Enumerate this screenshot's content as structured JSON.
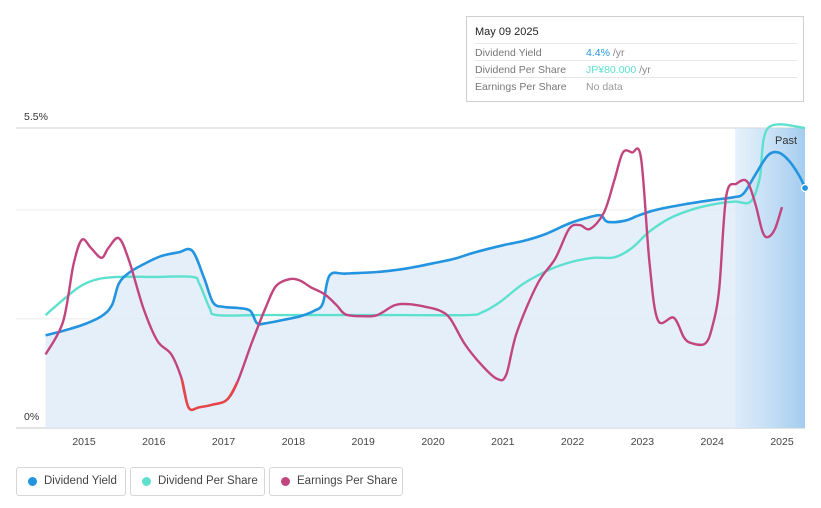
{
  "tooltip": {
    "date": "May 09 2025",
    "rows": [
      {
        "label": "Dividend Yield",
        "value": "4.4%",
        "unit": " /yr"
      },
      {
        "label": "Dividend Per Share",
        "value": "JP¥80.000",
        "unit": " /yr"
      },
      {
        "label": "Earnings Per Share",
        "value": "No data",
        "unit": ""
      }
    ]
  },
  "legend": [
    {
      "label": "Dividend Yield",
      "color": "#2394df"
    },
    {
      "label": "Dividend Per Share",
      "color": "#5ee0cf"
    },
    {
      "label": "Earnings Per Share",
      "color": "#c2457f"
    }
  ],
  "colors": {
    "dividend_yield": "#2394df",
    "dividend_per_share": "#5ee0cf",
    "earnings_positive": "#c2457f",
    "earnings_negative": "#e84545",
    "area_fill": "#dbeaf8"
  },
  "past_label": "Past",
  "chart_data": {
    "type": "line",
    "y_axis": {
      "min": 0,
      "max": 5.5,
      "tick_labels": [
        "0%",
        "5.5%"
      ]
    },
    "x_axis": {
      "tick_labels": [
        "2015",
        "2016",
        "2017",
        "2018",
        "2019",
        "2020",
        "2021",
        "2022",
        "2023",
        "2024",
        "2025"
      ]
    },
    "past_region_start": 2024.33,
    "series": [
      {
        "name": "Dividend Yield",
        "unit": "%",
        "points": [
          [
            2014.45,
            1.7
          ],
          [
            2014.7,
            1.78
          ],
          [
            2015.0,
            1.9
          ],
          [
            2015.25,
            2.05
          ],
          [
            2015.4,
            2.25
          ],
          [
            2015.5,
            2.65
          ],
          [
            2015.65,
            2.85
          ],
          [
            2015.85,
            3.0
          ],
          [
            2016.1,
            3.15
          ],
          [
            2016.35,
            3.22
          ],
          [
            2016.55,
            3.25
          ],
          [
            2016.72,
            2.75
          ],
          [
            2016.85,
            2.3
          ],
          [
            2017.0,
            2.22
          ],
          [
            2017.2,
            2.2
          ],
          [
            2017.38,
            2.15
          ],
          [
            2017.48,
            1.92
          ],
          [
            2017.6,
            1.92
          ],
          [
            2017.85,
            1.98
          ],
          [
            2018.1,
            2.05
          ],
          [
            2018.3,
            2.15
          ],
          [
            2018.42,
            2.28
          ],
          [
            2018.52,
            2.8
          ],
          [
            2018.75,
            2.83
          ],
          [
            2019.2,
            2.86
          ],
          [
            2019.6,
            2.92
          ],
          [
            2020.0,
            3.02
          ],
          [
            2020.3,
            3.1
          ],
          [
            2020.6,
            3.22
          ],
          [
            2021.0,
            3.35
          ],
          [
            2021.3,
            3.43
          ],
          [
            2021.6,
            3.55
          ],
          [
            2021.95,
            3.75
          ],
          [
            2022.2,
            3.85
          ],
          [
            2022.4,
            3.9
          ],
          [
            2022.5,
            3.78
          ],
          [
            2022.75,
            3.8
          ],
          [
            2022.95,
            3.9
          ],
          [
            2023.2,
            4.0
          ],
          [
            2023.6,
            4.1
          ],
          [
            2024.0,
            4.18
          ],
          [
            2024.3,
            4.23
          ],
          [
            2024.45,
            4.3
          ],
          [
            2024.62,
            4.65
          ],
          [
            2024.8,
            5.0
          ],
          [
            2024.95,
            5.05
          ],
          [
            2025.1,
            4.9
          ],
          [
            2025.25,
            4.62
          ],
          [
            2025.33,
            4.4
          ]
        ]
      },
      {
        "name": "Dividend Per Share",
        "unit": "JP¥",
        "points": [
          [
            2014.45,
            2.07
          ],
          [
            2014.7,
            2.35
          ],
          [
            2014.95,
            2.6
          ],
          [
            2015.2,
            2.73
          ],
          [
            2015.5,
            2.77
          ],
          [
            2016.0,
            2.77
          ],
          [
            2016.55,
            2.77
          ],
          [
            2016.65,
            2.65
          ],
          [
            2016.8,
            2.2
          ],
          [
            2016.9,
            2.07
          ],
          [
            2017.5,
            2.07
          ],
          [
            2018.5,
            2.07
          ],
          [
            2019.5,
            2.07
          ],
          [
            2020.5,
            2.07
          ],
          [
            2020.7,
            2.12
          ],
          [
            2020.95,
            2.3
          ],
          [
            2021.3,
            2.65
          ],
          [
            2021.7,
            2.92
          ],
          [
            2022.0,
            3.05
          ],
          [
            2022.3,
            3.12
          ],
          [
            2022.6,
            3.13
          ],
          [
            2022.85,
            3.3
          ],
          [
            2023.1,
            3.6
          ],
          [
            2023.4,
            3.85
          ],
          [
            2023.75,
            4.02
          ],
          [
            2024.1,
            4.12
          ],
          [
            2024.33,
            4.15
          ],
          [
            2024.55,
            4.15
          ],
          [
            2024.68,
            4.58
          ],
          [
            2024.8,
            5.5
          ],
          [
            2025.33,
            5.5
          ]
        ]
      },
      {
        "name": "Earnings Per Share",
        "unit": "JP¥",
        "points": [
          [
            2014.45,
            1.35
          ],
          [
            2014.7,
            1.95
          ],
          [
            2014.85,
            3.0
          ],
          [
            2014.97,
            3.45
          ],
          [
            2015.1,
            3.3
          ],
          [
            2015.25,
            3.12
          ],
          [
            2015.35,
            3.3
          ],
          [
            2015.5,
            3.48
          ],
          [
            2015.65,
            3.05
          ],
          [
            2015.85,
            2.2
          ],
          [
            2016.05,
            1.6
          ],
          [
            2016.25,
            1.35
          ],
          [
            2016.4,
            0.9
          ],
          [
            2016.5,
            0.37
          ],
          [
            2016.65,
            0.38
          ],
          [
            2016.85,
            0.43
          ],
          [
            2017.05,
            0.52
          ],
          [
            2017.2,
            0.85
          ],
          [
            2017.4,
            1.55
          ],
          [
            2017.6,
            2.2
          ],
          [
            2017.75,
            2.6
          ],
          [
            2017.95,
            2.73
          ],
          [
            2018.1,
            2.7
          ],
          [
            2018.25,
            2.58
          ],
          [
            2018.45,
            2.45
          ],
          [
            2018.62,
            2.25
          ],
          [
            2018.75,
            2.08
          ],
          [
            2019.0,
            2.05
          ],
          [
            2019.2,
            2.07
          ],
          [
            2019.45,
            2.25
          ],
          [
            2019.65,
            2.27
          ],
          [
            2019.9,
            2.22
          ],
          [
            2020.1,
            2.15
          ],
          [
            2020.25,
            2.0
          ],
          [
            2020.45,
            1.55
          ],
          [
            2020.7,
            1.15
          ],
          [
            2020.92,
            0.9
          ],
          [
            2021.05,
            0.98
          ],
          [
            2021.2,
            1.75
          ],
          [
            2021.5,
            2.65
          ],
          [
            2021.75,
            3.1
          ],
          [
            2021.95,
            3.65
          ],
          [
            2022.1,
            3.72
          ],
          [
            2022.25,
            3.65
          ],
          [
            2022.45,
            3.95
          ],
          [
            2022.6,
            4.55
          ],
          [
            2022.72,
            5.05
          ],
          [
            2022.85,
            5.05
          ],
          [
            2022.98,
            4.95
          ],
          [
            2023.1,
            3.05
          ],
          [
            2023.22,
            1.98
          ],
          [
            2023.45,
            2.02
          ],
          [
            2023.6,
            1.65
          ],
          [
            2023.72,
            1.55
          ],
          [
            2023.9,
            1.55
          ],
          [
            2024.0,
            1.85
          ],
          [
            2024.1,
            2.55
          ],
          [
            2024.2,
            4.25
          ],
          [
            2024.35,
            4.48
          ],
          [
            2024.5,
            4.52
          ],
          [
            2024.62,
            4.1
          ],
          [
            2024.72,
            3.6
          ],
          [
            2024.8,
            3.5
          ],
          [
            2024.9,
            3.65
          ],
          [
            2025.0,
            4.05
          ]
        ]
      }
    ]
  }
}
